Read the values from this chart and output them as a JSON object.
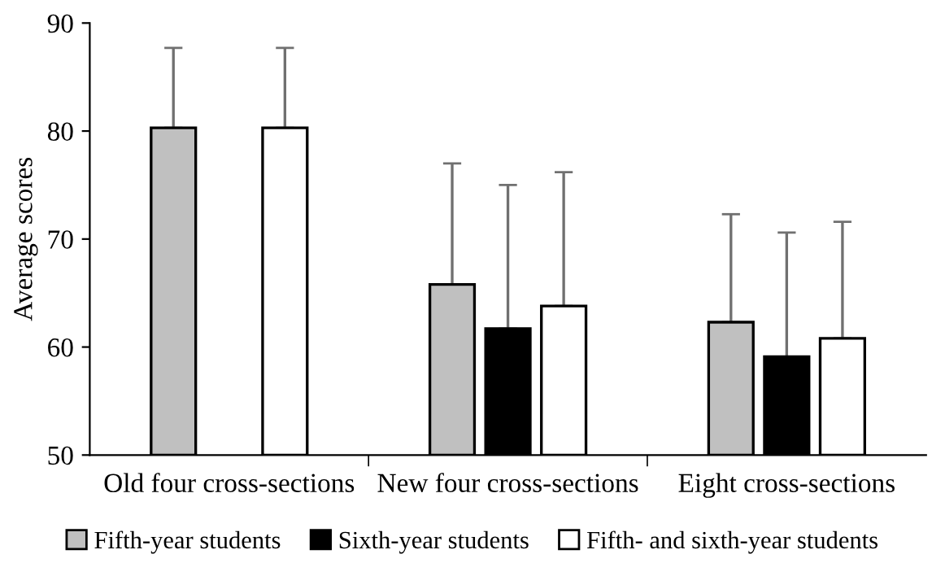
{
  "chart_data": {
    "type": "bar",
    "ylabel": "Average scores",
    "categories": [
      "Old four cross-sections",
      "New four cross-sections",
      "Eight cross-sections"
    ],
    "series": [
      {
        "name": "Fifth-year students",
        "color": "#c0c0c0",
        "values": [
          80.3,
          65.8,
          62.3
        ],
        "errors": [
          [
            80.3,
            87.7
          ],
          [
            65.8,
            77.0
          ],
          [
            62.3,
            72.3
          ]
        ]
      },
      {
        "name": "Sixth-year students",
        "color": "#000000",
        "values": [
          null,
          61.7,
          59.1
        ],
        "errors": [
          null,
          [
            61.7,
            75.0
          ],
          [
            59.1,
            70.6
          ]
        ]
      },
      {
        "name": "Fifth- and sixth-year students",
        "color": "#ffffff",
        "values": [
          80.3,
          63.8,
          60.8
        ],
        "errors": [
          [
            80.3,
            87.7
          ],
          [
            63.8,
            76.2
          ],
          [
            60.8,
            71.6
          ]
        ]
      }
    ],
    "ylim": [
      50,
      90
    ],
    "yticks": [
      50,
      60,
      70,
      80,
      90
    ],
    "grid": false,
    "legend": "bottom"
  }
}
